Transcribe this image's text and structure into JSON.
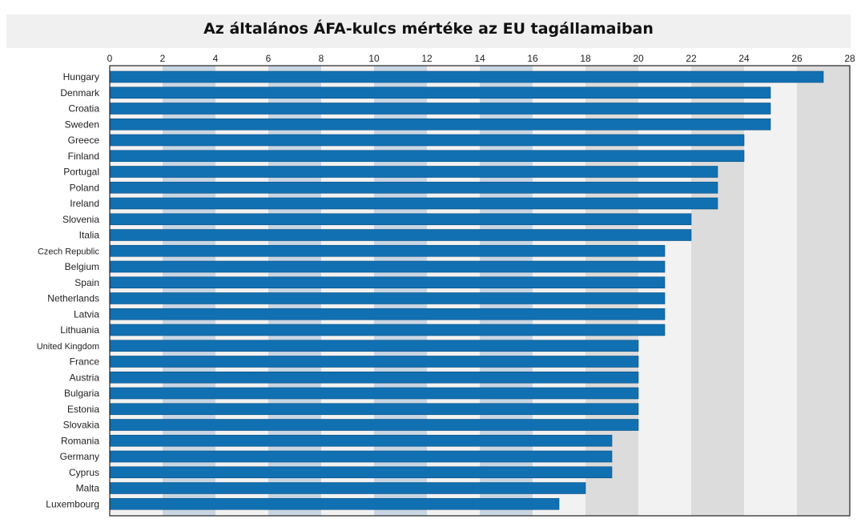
{
  "chart_data": {
    "type": "bar",
    "orientation": "horizontal",
    "title": "Az általános ÁFA-kulcs mértéke az EU tagállamaiban",
    "xlabel": "",
    "ylabel": "",
    "xlim": [
      0,
      28
    ],
    "xticks": [
      0,
      2,
      4,
      6,
      8,
      10,
      12,
      14,
      16,
      18,
      20,
      22,
      24,
      26,
      28
    ],
    "x_axis_position": "top",
    "grid": "alternating vertical bands",
    "categories": [
      "Hungary",
      "Denmark",
      "Croatia",
      "Sweden",
      "Greece",
      "Finland",
      "Portugal",
      "Poland",
      "Ireland",
      "Slovenia",
      "Italia",
      "Czech Republic",
      "Belgium",
      "Spain",
      "Netherlands",
      "Latvia",
      "Lithuania",
      "United Kingdom",
      "France",
      "Austria",
      "Bulgaria",
      "Estonia",
      "Slovakia",
      "Romania",
      "Germany",
      "Cyprus",
      "Malta",
      "Luxembourg"
    ],
    "values": [
      27,
      25,
      25,
      25,
      24,
      24,
      23,
      23,
      23,
      22,
      22,
      21,
      21,
      21,
      21,
      21,
      21,
      20,
      20,
      20,
      20,
      20,
      20,
      19,
      19,
      19,
      18,
      17
    ],
    "colors": {
      "bar": "#1170b2",
      "bar_edge": "#0a4f80",
      "band_light": "#f2f2f2",
      "band_mid": "#c8d6e4",
      "band_dark": "#dcdcdc",
      "title_background": "#f0f0f0"
    }
  }
}
